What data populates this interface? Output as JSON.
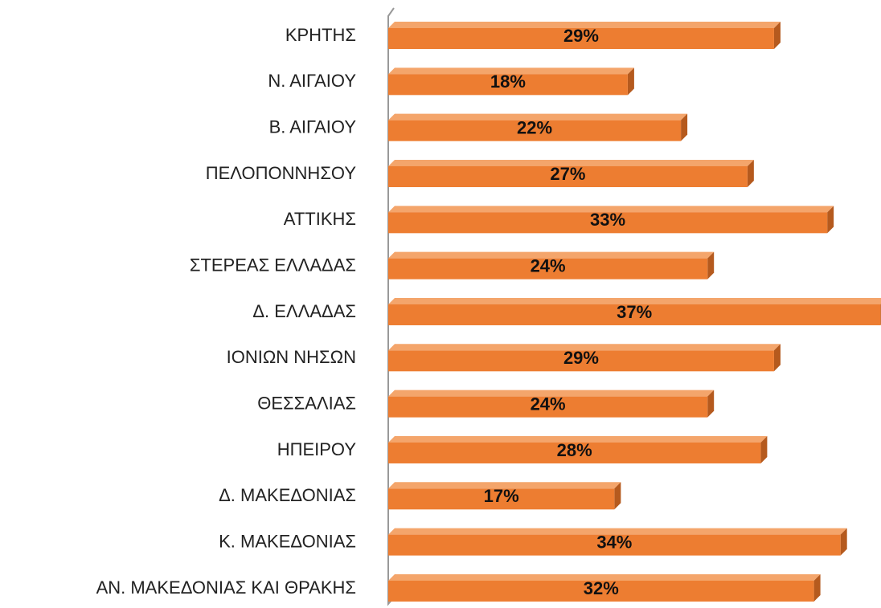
{
  "chart_data": {
    "type": "bar",
    "orientation": "horizontal",
    "categories": [
      "ΚΡΗΤΗΣ",
      "Ν. ΑΙΓΑΙΟΥ",
      "Β. ΑΙΓΑΙΟΥ",
      "ΠΕΛΟΠΟΝΝΗΣΟΥ",
      "ΑΤΤΙΚΗΣ",
      "ΣΤΕΡΕΑΣ ΕΛΛΑΔΑΣ",
      "Δ. ΕΛΛΑΔΑΣ",
      "ΙΟΝΙΩΝ ΝΗΣΩΝ",
      "ΘΕΣΣΑΛΙΑΣ",
      "ΗΠΕΙΡΟΥ",
      "Δ. ΜΑΚΕΔΟΝΙΑΣ",
      "Κ. ΜΑΚΕΔΟΝΙΑΣ",
      "ΑΝ. ΜΑΚΕΔΟΝΙΑΣ ΚΑΙ ΘΡΑΚΗΣ"
    ],
    "values": [
      29,
      18,
      22,
      27,
      33,
      24,
      37,
      29,
      24,
      28,
      17,
      34,
      32
    ],
    "value_labels": [
      "29%",
      "18%",
      "22%",
      "27%",
      "33%",
      "24%",
      "37%",
      "29%",
      "24%",
      "28%",
      "17%",
      "34%",
      "32%"
    ],
    "color": "#ED7D31"
  }
}
